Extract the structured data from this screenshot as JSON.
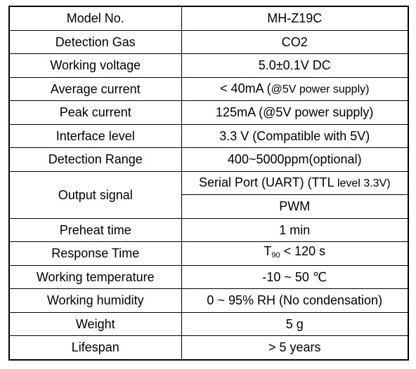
{
  "rows": [
    {
      "label": "Model No.",
      "value": "MH-Z19C"
    },
    {
      "label": "Detection Gas",
      "value": "CO2"
    },
    {
      "label": "Working voltage",
      "value": "5.0±0.1V DC"
    },
    {
      "label": "Average current",
      "value": "< 40mA (",
      "value_note": "@5V power supply)"
    },
    {
      "label": "Peak current",
      "value": "125mA (@5V power supply)"
    },
    {
      "label": "Interface level",
      "value": "3.3 V (Compatible with 5V)"
    },
    {
      "label": "Detection Range",
      "value": "400~5000ppm(optional)"
    },
    {
      "label": "Output signal",
      "value": "Serial Port (UART) (TTL ",
      "value_note": "level 3.3V)",
      "value2": "PWM"
    },
    {
      "label": "Preheat time",
      "value": "1 min"
    },
    {
      "label": "Response Time",
      "value_prefix": "T",
      "value_sub": "90",
      "value": " < 120 s"
    },
    {
      "label": "Working temperature",
      "value": "-10 ~ 50 ℃"
    },
    {
      "label": "Working humidity",
      "value": "0 ~ 95% RH (No condensation)"
    },
    {
      "label": "Weight",
      "value": "5 g"
    },
    {
      "label": "Lifespan",
      "value": "> 5 years"
    }
  ]
}
